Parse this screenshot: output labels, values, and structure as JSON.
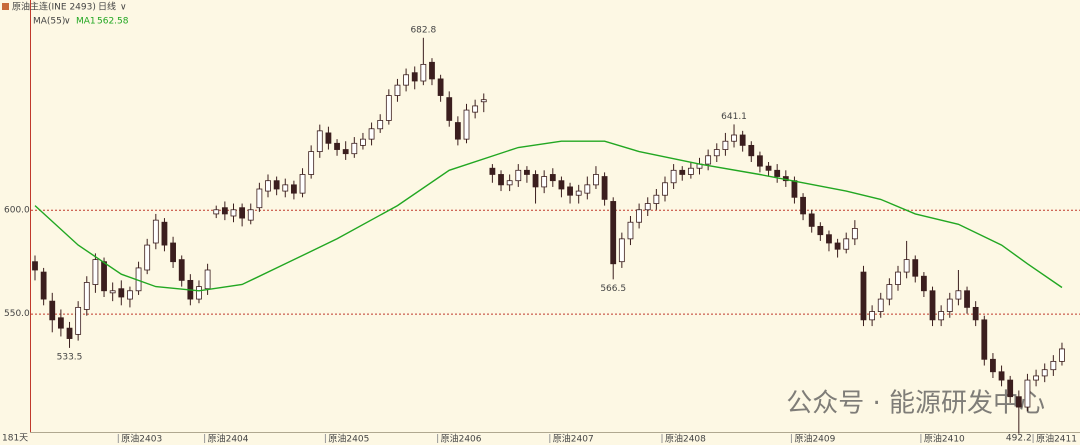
{
  "header": {
    "symbol": "原油主连(INE 2493)",
    "period": "日线"
  },
  "chart_data": {
    "type": "candlestick",
    "ylim": [
      493,
      701
    ],
    "yticks": [
      {
        "value": 550,
        "label": "550.0"
      },
      {
        "value": 600,
        "label": "600.0"
      }
    ],
    "grid": true,
    "day_count": "181天",
    "up_color": "#ffffff",
    "down_color": "#3b1e1e",
    "categories": [
      null,
      null,
      null,
      null,
      null,
      null,
      null,
      null,
      null,
      null,
      "原油2403",
      null,
      null,
      null,
      null,
      null,
      null,
      null,
      null,
      null,
      "原油2404",
      null,
      null,
      null,
      null,
      null,
      null,
      null,
      null,
      null,
      null,
      null,
      null,
      null,
      "原油2405",
      null,
      null,
      null,
      null,
      null,
      null,
      null,
      null,
      null,
      null,
      null,
      null,
      "原油2406",
      null,
      null,
      null,
      null,
      null,
      null,
      null,
      null,
      null,
      null,
      null,
      null,
      "原油2407",
      null,
      null,
      null,
      null,
      null,
      null,
      null,
      null,
      null,
      null,
      null,
      null,
      "原油2408",
      null,
      null,
      null,
      null,
      null,
      null,
      null,
      null,
      null,
      null,
      null,
      null,
      null,
      null,
      "原油2409",
      null,
      null,
      null,
      null,
      null,
      null,
      null,
      null,
      null,
      null,
      null,
      null,
      null,
      null,
      "原油2410",
      null,
      null,
      null,
      null,
      null,
      null,
      null,
      null,
      null,
      null,
      null,
      null,
      "原油2411",
      null,
      null,
      null
    ],
    "ohlc": [
      [
        575,
        578,
        566,
        571
      ],
      [
        570,
        572,
        554,
        557
      ],
      [
        556,
        560,
        541,
        547
      ],
      [
        548,
        552,
        539,
        543
      ],
      [
        543,
        546,
        533.5,
        538
      ],
      [
        540,
        556,
        537,
        553
      ],
      [
        552,
        568,
        549,
        565
      ],
      [
        564,
        579,
        560,
        576
      ],
      [
        575,
        577,
        558,
        561
      ],
      [
        560,
        565,
        556,
        561
      ],
      [
        562,
        566,
        554,
        558
      ],
      [
        557,
        563,
        553,
        561
      ],
      [
        561,
        575,
        559,
        572
      ],
      [
        571,
        586,
        569,
        583
      ],
      [
        584,
        598,
        581,
        595
      ],
      [
        594,
        596,
        580,
        583
      ],
      [
        584,
        587,
        572,
        575
      ],
      [
        576,
        578,
        563,
        566
      ],
      [
        566,
        569,
        554,
        557
      ],
      [
        557,
        566,
        555,
        563
      ],
      [
        562,
        574,
        559,
        571
      ],
      [
        598,
        602,
        596,
        600
      ],
      [
        601,
        604,
        595,
        598
      ],
      [
        597,
        603,
        594,
        600
      ],
      [
        601,
        603,
        592,
        596
      ],
      [
        595,
        603,
        593,
        600
      ],
      [
        601,
        613,
        599,
        610
      ],
      [
        609,
        617,
        606,
        614
      ],
      [
        614,
        616,
        607,
        610
      ],
      [
        609,
        615,
        606,
        612
      ],
      [
        612,
        614,
        605,
        608
      ],
      [
        608,
        620,
        606,
        617
      ],
      [
        617,
        631,
        615,
        628
      ],
      [
        628,
        641,
        625,
        638
      ],
      [
        637,
        640,
        629,
        632
      ],
      [
        632,
        634,
        626,
        629
      ],
      [
        629,
        633,
        624,
        627
      ],
      [
        627,
        635,
        625,
        632
      ],
      [
        631,
        637,
        629,
        634
      ],
      [
        634,
        642,
        631,
        639
      ],
      [
        639,
        646,
        637,
        643
      ],
      [
        643,
        658,
        641,
        655
      ],
      [
        655,
        663,
        652,
        660
      ],
      [
        660,
        668,
        657,
        665
      ],
      [
        666,
        669,
        658,
        662
      ],
      [
        662,
        682.8,
        660,
        670
      ],
      [
        671,
        673,
        660,
        663
      ],
      [
        663,
        665,
        652,
        655
      ],
      [
        654,
        657,
        640,
        643
      ],
      [
        642,
        645,
        631,
        634
      ],
      [
        634,
        651,
        632,
        648
      ],
      [
        647,
        653,
        644,
        650
      ],
      [
        652,
        656,
        647,
        653
      ],
      [
        620,
        622,
        613,
        617
      ],
      [
        617,
        619,
        609,
        612
      ],
      [
        612,
        617,
        609,
        614
      ],
      [
        614,
        622,
        611,
        619
      ],
      [
        619,
        621,
        613,
        617
      ],
      [
        617,
        619,
        603,
        611
      ],
      [
        611,
        619,
        608,
        616
      ],
      [
        617,
        620,
        611,
        614
      ],
      [
        614,
        616,
        606,
        610
      ],
      [
        611,
        613,
        603,
        607
      ],
      [
        607,
        612,
        603,
        609
      ],
      [
        608,
        616,
        605,
        612
      ],
      [
        612,
        621,
        610,
        617
      ],
      [
        616,
        618,
        602,
        605
      ],
      [
        604,
        606,
        566.5,
        574
      ],
      [
        575,
        589,
        572,
        586
      ],
      [
        586,
        597,
        583,
        594
      ],
      [
        594,
        603,
        591,
        600
      ],
      [
        600,
        606,
        597,
        603
      ],
      [
        603,
        610,
        600,
        607
      ],
      [
        607,
        616,
        604,
        613
      ],
      [
        613,
        622,
        610,
        619
      ],
      [
        619,
        621,
        614,
        617
      ],
      [
        617,
        623,
        615,
        620
      ],
      [
        620,
        625,
        617,
        622
      ],
      [
        622,
        629,
        619,
        626
      ],
      [
        626,
        632,
        623,
        629
      ],
      [
        629,
        637,
        626,
        633
      ],
      [
        633,
        641.1,
        630,
        636
      ],
      [
        636,
        638,
        628,
        631
      ],
      [
        631,
        633,
        623,
        626
      ],
      [
        626,
        628,
        618,
        621
      ],
      [
        621,
        623,
        616,
        619
      ],
      [
        619,
        622,
        613,
        616
      ],
      [
        616,
        619,
        611,
        614
      ],
      [
        614,
        616,
        603,
        606
      ],
      [
        606,
        608,
        595,
        598
      ],
      [
        598,
        600,
        589,
        592
      ],
      [
        592,
        594,
        585,
        588
      ],
      [
        588,
        590,
        580,
        584
      ],
      [
        584,
        586,
        577,
        581
      ],
      [
        581,
        589,
        579,
        586
      ],
      [
        586,
        595,
        583,
        591
      ],
      [
        570,
        573,
        544,
        547
      ],
      [
        547,
        554,
        544,
        551
      ],
      [
        551,
        560,
        548,
        557
      ],
      [
        557,
        567,
        554,
        564
      ],
      [
        564,
        573,
        561,
        570
      ],
      [
        570,
        585,
        567,
        576
      ],
      [
        576,
        578,
        565,
        568
      ],
      [
        568,
        570,
        558,
        561
      ],
      [
        561,
        563,
        544,
        547
      ],
      [
        547,
        554,
        544,
        551
      ],
      [
        551,
        560,
        548,
        557
      ],
      [
        557,
        571,
        554,
        561
      ],
      [
        561,
        563,
        550,
        553
      ],
      [
        553,
        556,
        544,
        547
      ],
      [
        547,
        549,
        525,
        528
      ],
      [
        528,
        531,
        519,
        522
      ],
      [
        522,
        525,
        515,
        518
      ],
      [
        518,
        520,
        507,
        510
      ],
      [
        510,
        513,
        492.2,
        505
      ],
      [
        505,
        521,
        503,
        518
      ],
      [
        518,
        523,
        515,
        520
      ],
      [
        520,
        526,
        517,
        523
      ],
      [
        523,
        530,
        520,
        527
      ],
      [
        527,
        536,
        525,
        533
      ]
    ],
    "ma": {
      "name": "MA(55)",
      "label": "MA1",
      "color": "#22a722",
      "x": [
        0,
        5,
        10,
        14,
        19,
        24,
        29,
        35,
        42,
        48,
        56,
        61,
        66,
        70,
        77,
        84,
        89,
        94,
        98,
        102,
        107,
        112,
        115,
        119
      ],
      "values": [
        602,
        583,
        569,
        563,
        561,
        564,
        574,
        586,
        602,
        619,
        630,
        633,
        633,
        628,
        622,
        617,
        613,
        609,
        605,
        598,
        593,
        583,
        574,
        562.58
      ]
    },
    "watermark": "公众号 · 能源研发中心"
  }
}
